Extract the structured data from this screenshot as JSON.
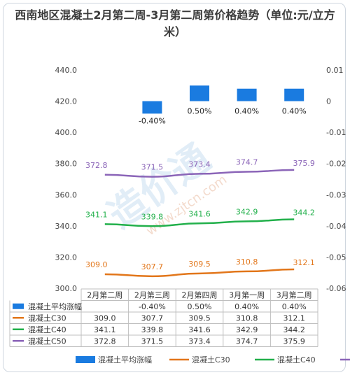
{
  "chart_data": {
    "type": "bar+line",
    "title": "西南地区混凝土2月第二周-3月第二周第价格趋势（单位:元/立方米）",
    "categories": [
      "2月第二周",
      "2月第三周",
      "2月第四周",
      "3月第一周",
      "3月第二周"
    ],
    "left_axis": {
      "ticks": [
        "300.0",
        "320.0",
        "340.0",
        "360.0",
        "380.0",
        "400.0",
        "420.0",
        "440.0"
      ],
      "ylim": [
        300,
        440
      ]
    },
    "right_axis": {
      "ticks": [
        "0.01",
        "0",
        "-0.01",
        "-0.02",
        "-0.03",
        "-0.04",
        "-0.05",
        "-0.06"
      ],
      "ylim": [
        -0.06,
        0.01
      ]
    },
    "bar_series": {
      "name": "混凝土平均涨幅",
      "values": [
        null,
        -0.004,
        0.005,
        0.004,
        0.004
      ],
      "labels": [
        "",
        "-0.40%",
        "0.50%",
        "0.40%",
        "0.40%"
      ],
      "color": "#1a7be0"
    },
    "line_series": [
      {
        "name": "混凝土C30",
        "values": [
          309.0,
          307.7,
          309.5,
          310.8,
          312.1
        ],
        "labels": [
          "309.0",
          "307.7",
          "309.5",
          "310.8",
          "312.1"
        ],
        "color": "#e2761a"
      },
      {
        "name": "混凝土C40",
        "values": [
          341.1,
          339.8,
          341.6,
          342.9,
          344.2
        ],
        "labels": [
          "341.1",
          "339.8",
          "341.6",
          "342.9",
          "344.2"
        ],
        "color": "#22b04b"
      },
      {
        "name": "混凝土C50",
        "values": [
          372.8,
          371.5,
          373.4,
          374.7,
          375.9
        ],
        "labels": [
          "372.8",
          "371.5",
          "373.4",
          "374.7",
          "375.9"
        ],
        "color": "#8b65b8"
      }
    ],
    "legend_position": "bottom",
    "watermark": "造价通 www.zjtcn.com"
  }
}
